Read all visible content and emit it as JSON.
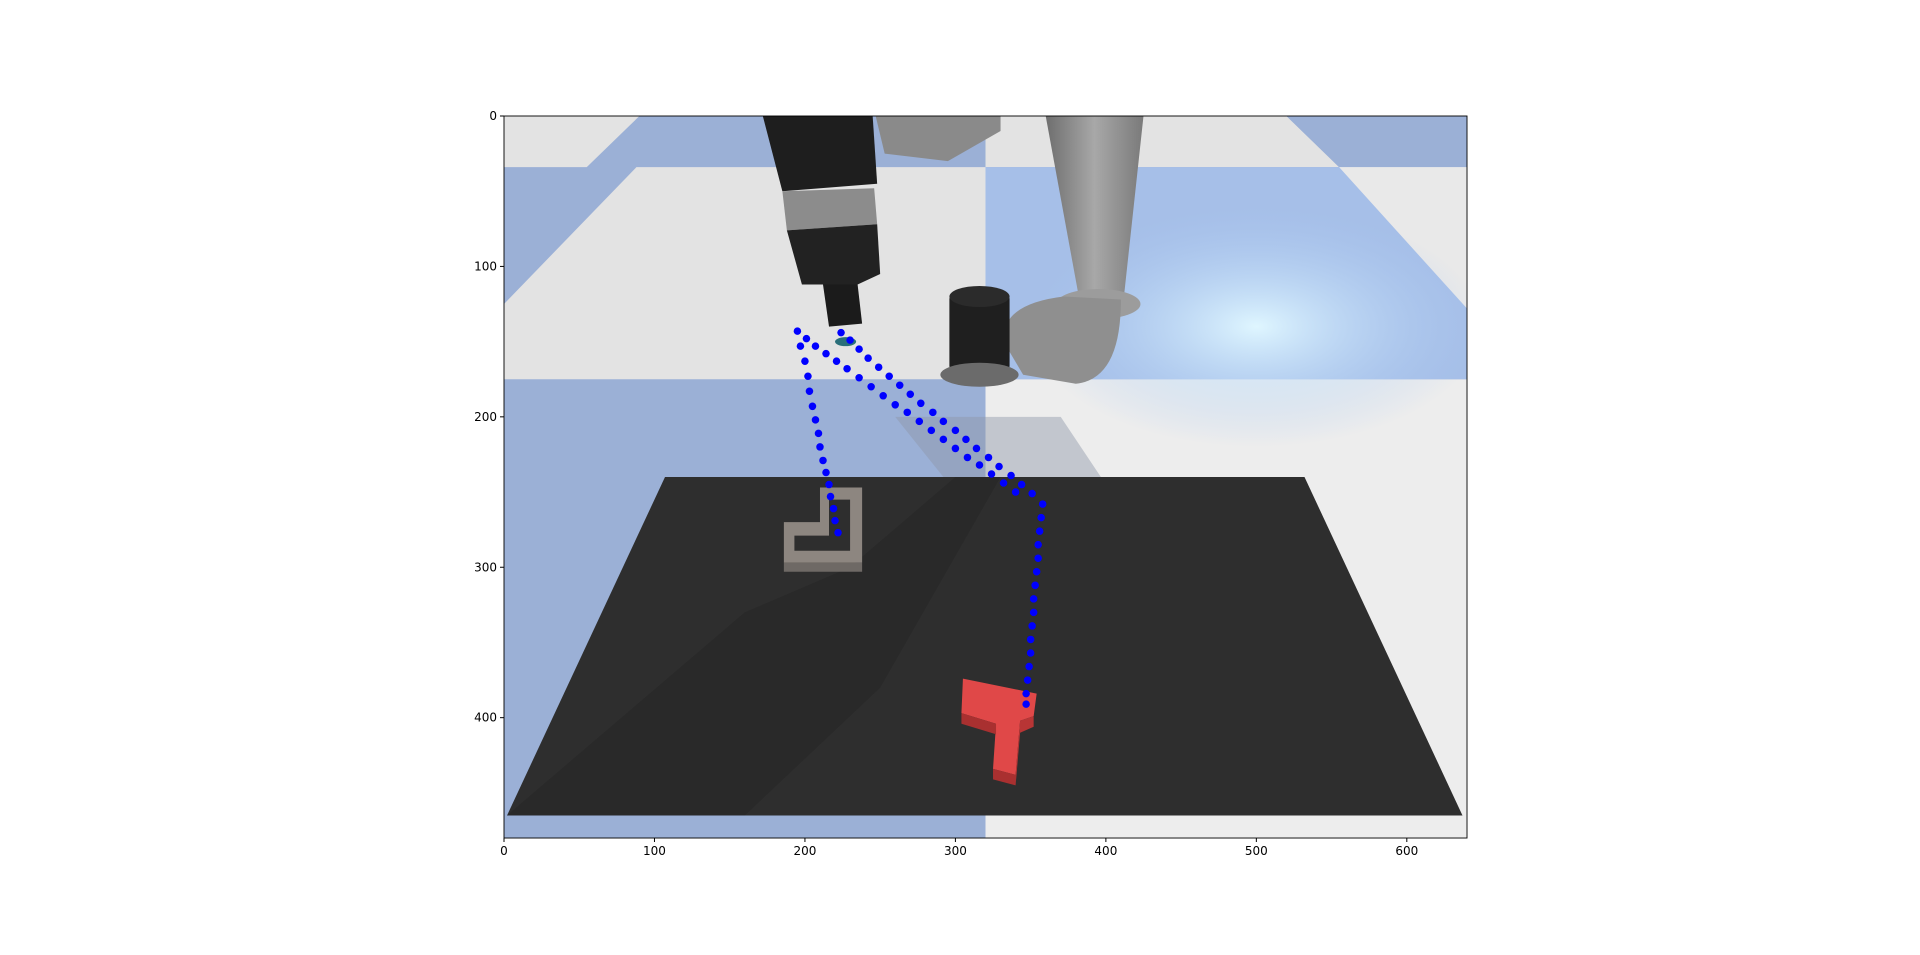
{
  "chart_data": {
    "type": "scatter",
    "title": "",
    "xlabel": "",
    "ylabel": "",
    "xlim": [
      0,
      640
    ],
    "ylim": [
      480,
      0
    ],
    "y_inverted": true,
    "grid": false,
    "background": "image",
    "xticks": [
      0,
      100,
      200,
      300,
      400,
      500,
      600
    ],
    "yticks": [
      0,
      100,
      200,
      300,
      400
    ],
    "series": [
      {
        "marker_color": "#0000ff",
        "points": [
          {
            "x": 195,
            "y": 143
          },
          {
            "x": 197,
            "y": 153
          },
          {
            "x": 200,
            "y": 163
          },
          {
            "x": 202,
            "y": 173
          },
          {
            "x": 203,
            "y": 183
          },
          {
            "x": 205,
            "y": 193
          },
          {
            "x": 207,
            "y": 202
          },
          {
            "x": 209,
            "y": 211
          },
          {
            "x": 210,
            "y": 220
          },
          {
            "x": 212,
            "y": 229
          },
          {
            "x": 214,
            "y": 237
          },
          {
            "x": 216,
            "y": 245
          },
          {
            "x": 217,
            "y": 253
          },
          {
            "x": 219,
            "y": 261
          },
          {
            "x": 220,
            "y": 269
          },
          {
            "x": 222,
            "y": 277
          },
          {
            "x": 201,
            "y": 148
          },
          {
            "x": 207,
            "y": 153
          },
          {
            "x": 214,
            "y": 158
          },
          {
            "x": 221,
            "y": 163
          },
          {
            "x": 228,
            "y": 168
          },
          {
            "x": 236,
            "y": 174
          },
          {
            "x": 244,
            "y": 180
          },
          {
            "x": 252,
            "y": 186
          },
          {
            "x": 260,
            "y": 192
          },
          {
            "x": 268,
            "y": 197
          },
          {
            "x": 276,
            "y": 203
          },
          {
            "x": 284,
            "y": 209
          },
          {
            "x": 292,
            "y": 215
          },
          {
            "x": 300,
            "y": 221
          },
          {
            "x": 308,
            "y": 227
          },
          {
            "x": 316,
            "y": 232
          },
          {
            "x": 324,
            "y": 238
          },
          {
            "x": 332,
            "y": 244
          },
          {
            "x": 340,
            "y": 250
          },
          {
            "x": 224,
            "y": 144
          },
          {
            "x": 230,
            "y": 149
          },
          {
            "x": 236,
            "y": 155
          },
          {
            "x": 242,
            "y": 161
          },
          {
            "x": 249,
            "y": 167
          },
          {
            "x": 256,
            "y": 173
          },
          {
            "x": 263,
            "y": 179
          },
          {
            "x": 270,
            "y": 185
          },
          {
            "x": 277,
            "y": 191
          },
          {
            "x": 285,
            "y": 197
          },
          {
            "x": 292,
            "y": 203
          },
          {
            "x": 300,
            "y": 209
          },
          {
            "x": 307,
            "y": 215
          },
          {
            "x": 314,
            "y": 221
          },
          {
            "x": 322,
            "y": 227
          },
          {
            "x": 329,
            "y": 233
          },
          {
            "x": 337,
            "y": 239
          },
          {
            "x": 344,
            "y": 245
          },
          {
            "x": 351,
            "y": 251
          },
          {
            "x": 358,
            "y": 258
          },
          {
            "x": 357,
            "y": 267
          },
          {
            "x": 356,
            "y": 276
          },
          {
            "x": 355,
            "y": 285
          },
          {
            "x": 355,
            "y": 294
          },
          {
            "x": 354,
            "y": 303
          },
          {
            "x": 353,
            "y": 312
          },
          {
            "x": 352,
            "y": 321
          },
          {
            "x": 352,
            "y": 330
          },
          {
            "x": 351,
            "y": 339
          },
          {
            "x": 350,
            "y": 348
          },
          {
            "x": 350,
            "y": 357
          },
          {
            "x": 349,
            "y": 366
          },
          {
            "x": 348,
            "y": 375
          },
          {
            "x": 347,
            "y": 384
          },
          {
            "x": 347,
            "y": 391
          }
        ]
      }
    ],
    "scene_colors": {
      "floor_tile_light": "#e3e3e3",
      "floor_tile_blue": "#9bb0d6",
      "table": "#2e2e2e",
      "robot_arm": "#8a8a8a",
      "gripper": "#1e1e1e",
      "target_outline": "#8d8680",
      "block": "#e04848"
    }
  }
}
